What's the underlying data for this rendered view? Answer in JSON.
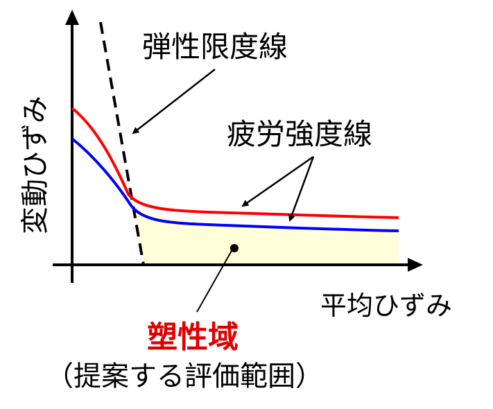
{
  "labels": {
    "elastic_limit_line": "弾性限度線",
    "fatigue_strength_line": "疲労強度線",
    "x_axis": "平均ひずみ",
    "y_axis": "変動ひずみ",
    "plastic_region": "塑性域",
    "evaluation_scope": "（提案する評価範囲）"
  },
  "colors": {
    "axis": "#000000",
    "fatigue_upper_curve": "#ff0000",
    "fatigue_lower_curve": "#0000ff",
    "plastic_region_fill": "#ffffd9",
    "plastic_label": "#e00000"
  }
}
